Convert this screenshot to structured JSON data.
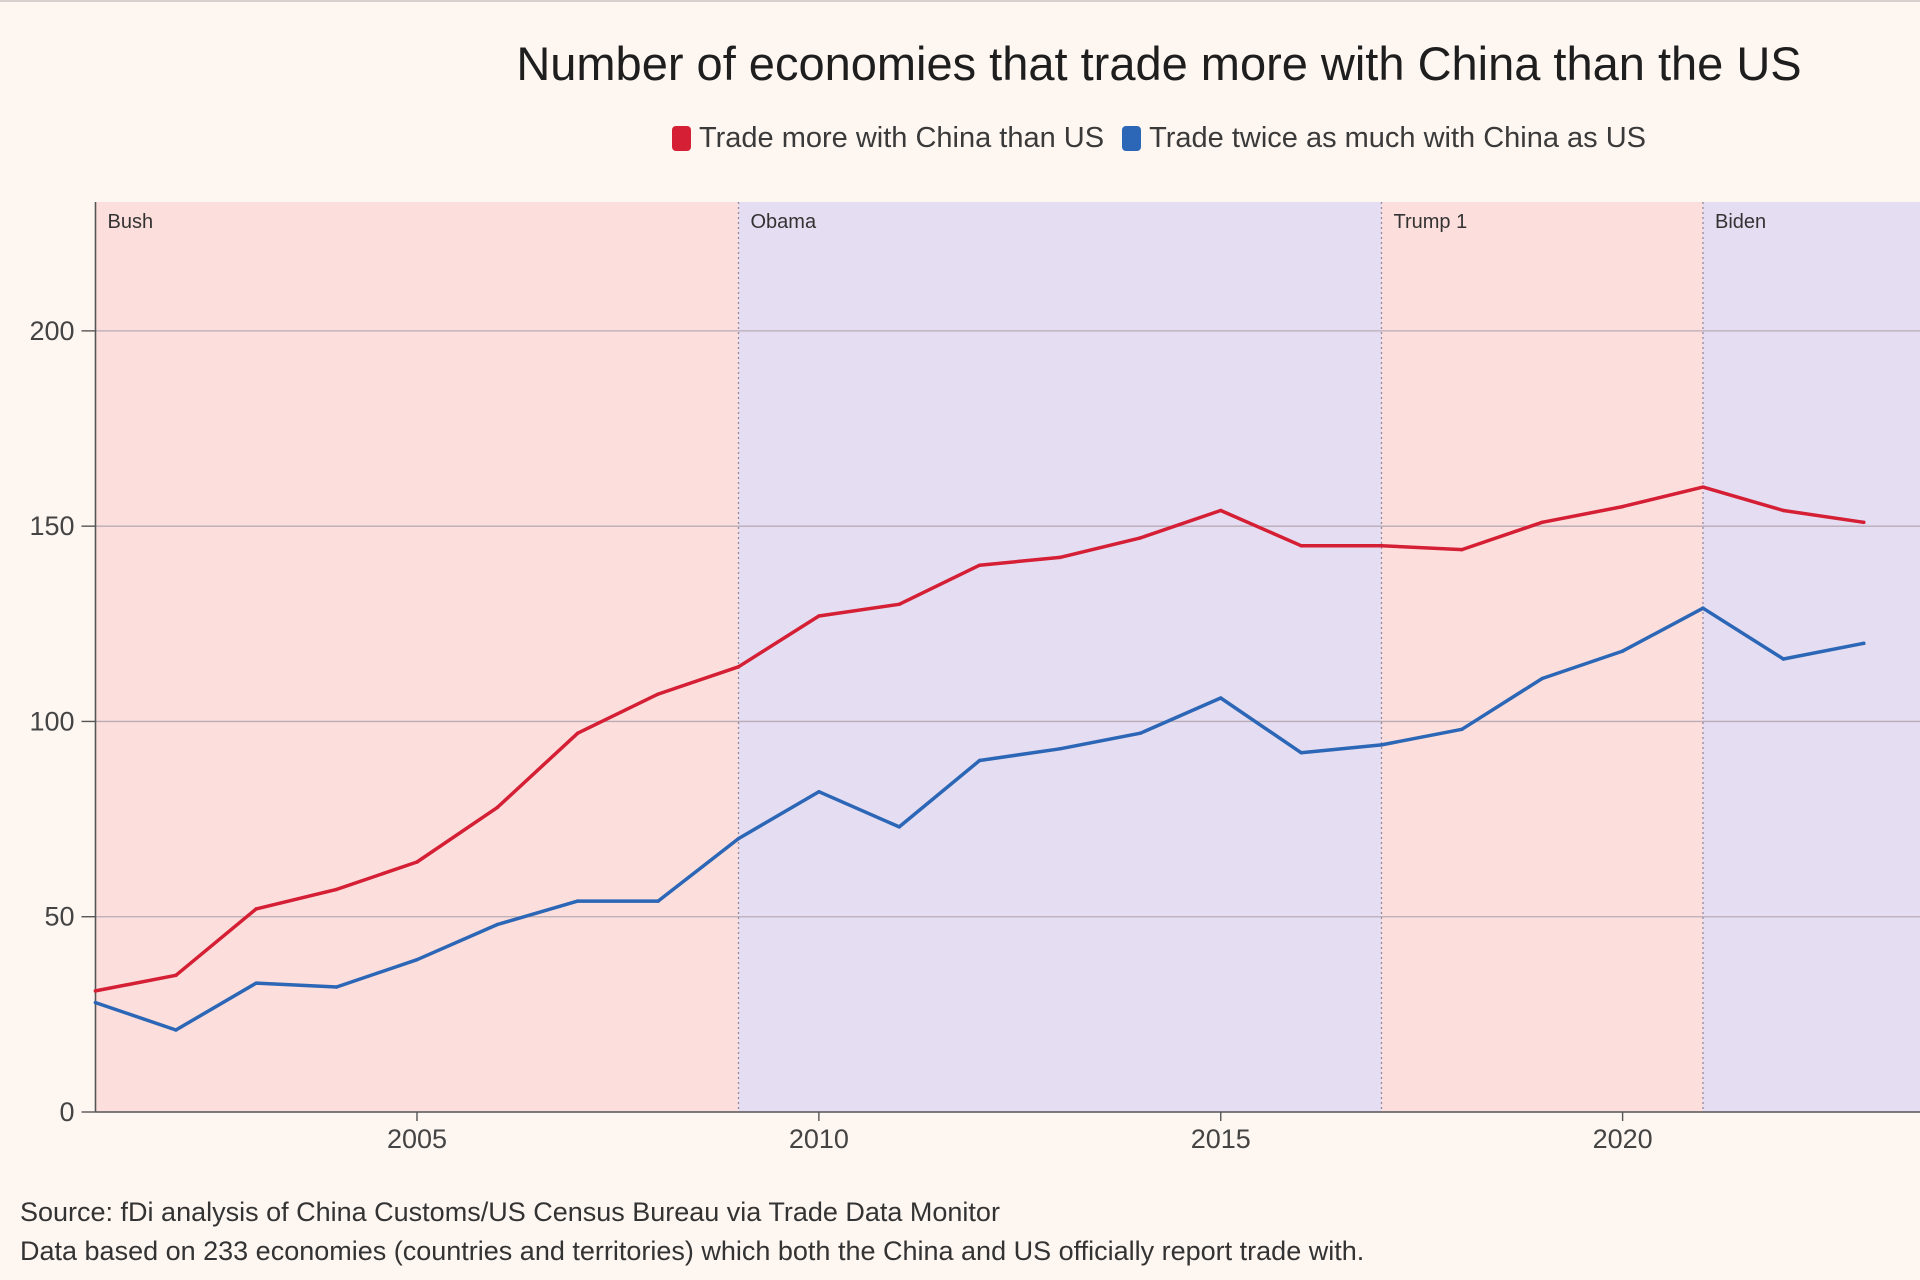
{
  "chart_data": {
    "type": "line",
    "title": "Number of economies that trade more with China than the US",
    "x": [
      2001,
      2002,
      2003,
      2004,
      2005,
      2006,
      2007,
      2008,
      2009,
      2010,
      2011,
      2012,
      2013,
      2014,
      2015,
      2016,
      2017,
      2018,
      2019,
      2020,
      2021,
      2022,
      2023
    ],
    "series": [
      {
        "name": "Trade more with China than US",
        "color": "#d41f35",
        "values": [
          31,
          35,
          52,
          57,
          64,
          78,
          97,
          107,
          114,
          127,
          130,
          140,
          142,
          147,
          154,
          145,
          145,
          144,
          151,
          155,
          160,
          154,
          151
        ]
      },
      {
        "name": "Trade twice as much with China as US",
        "color": "#2c66b6",
        "values": [
          28,
          21,
          33,
          32,
          39,
          48,
          54,
          54,
          70,
          82,
          73,
          90,
          93,
          97,
          106,
          92,
          94,
          98,
          111,
          118,
          129,
          116,
          120
        ]
      }
    ],
    "xlim": [
      2001,
      2023.7
    ],
    "ylim": [
      0,
      233
    ],
    "xticks": [
      2005,
      2010,
      2015,
      2020
    ],
    "yticks": [
      0,
      50,
      100,
      150,
      200
    ],
    "grid": {
      "horizontal": true,
      "vertical": false
    },
    "legend": {
      "position": "top-center"
    },
    "periods": [
      {
        "label": "Bush",
        "start": 2001,
        "end": 2009,
        "color": "#fcdfdc"
      },
      {
        "label": "Obama",
        "start": 2009,
        "end": 2017,
        "color": "#e5ddf1"
      },
      {
        "label": "Trump 1",
        "start": 2017,
        "end": 2021,
        "color": "#fcdfdc"
      },
      {
        "label": "Biden",
        "start": 2021,
        "end": null,
        "color": "#e5ddf1"
      }
    ]
  },
  "source": {
    "line1": "Source: fDi analysis of China Customs/US Census Bureau via Trade Data Monitor",
    "line2": "Data based on 233 economies (countries and territories) which both the China and US officially report trade with."
  },
  "colors": {
    "page_background": "#fdf6f1",
    "axis": "#555555",
    "grid": "#b9acb6",
    "period_divider": "#938aa0",
    "text": "#222222"
  }
}
